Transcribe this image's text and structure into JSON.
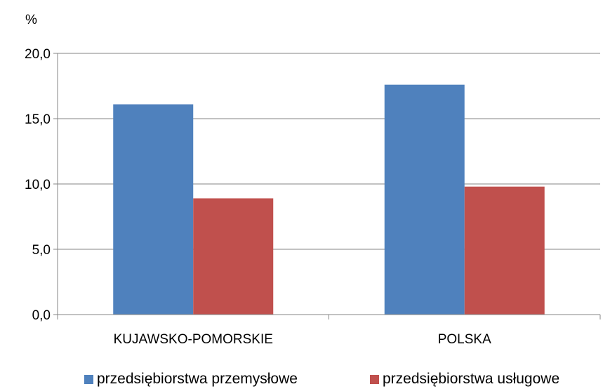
{
  "chart_data": {
    "type": "bar",
    "unit_label": "%",
    "categories": [
      "KUJAWSKO-POMORSKIE",
      "POLSKA"
    ],
    "series": [
      {
        "name": "przedsiębiorstwa przemysłowe",
        "color": "#4F81BD",
        "values": [
          16.1,
          17.6
        ]
      },
      {
        "name": "przedsiębiorstwa usługowe",
        "color": "#C0504D",
        "values": [
          8.9,
          9.8
        ]
      }
    ],
    "yticks": [
      "0,0",
      "5,0",
      "10,0",
      "15,0",
      "20,0"
    ],
    "ylim": [
      0,
      20
    ],
    "grid": true,
    "legend_position": "bottom"
  }
}
